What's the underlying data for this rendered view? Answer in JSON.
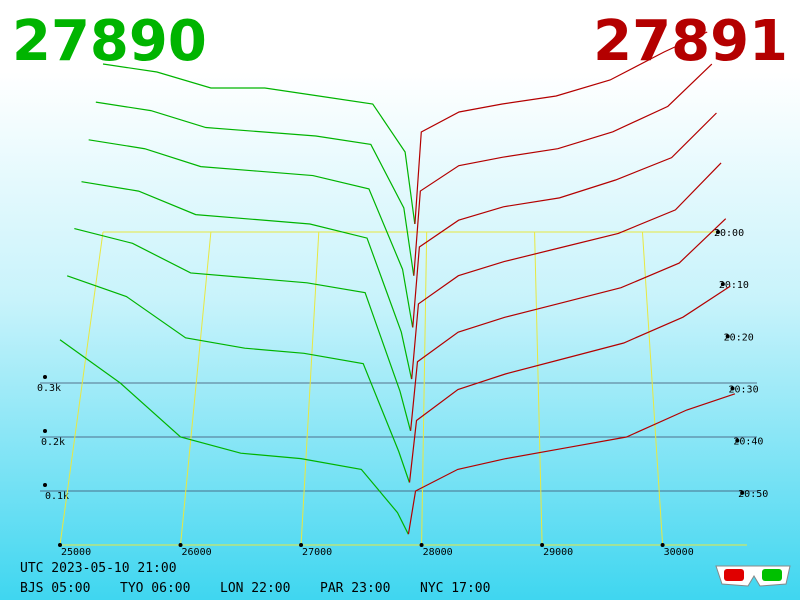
{
  "header": {
    "bid": 27890,
    "ask": 27891
  },
  "chart_data": {
    "type": "depth3d",
    "xlim": [
      25000,
      30700
    ],
    "xticks": [
      25000,
      26000,
      27000,
      28000,
      29000,
      30000
    ],
    "ylim": [
      0,
      0.5
    ],
    "yticks": [
      {
        "value": 0.1,
        "label": "0.1k"
      },
      {
        "value": 0.2,
        "label": "0.2k"
      },
      {
        "value": 0.3,
        "label": "0.3k"
      }
    ],
    "time_ticks": [
      "20:00",
      "20:10",
      "20:20",
      "20:30",
      "20:40",
      "20:50"
    ],
    "bids": {
      "color": "#00b400",
      "x": [
        25000,
        25500,
        26000,
        26500,
        27000,
        27500,
        27800,
        27890
      ],
      "series": [
        {
          "values": [
            0.42,
            0.4,
            0.36,
            0.36,
            0.34,
            0.32,
            0.2,
            0.02
          ]
        },
        {
          "values": [
            0.43,
            0.41,
            0.37,
            0.36,
            0.35,
            0.33,
            0.18,
            0.02
          ]
        },
        {
          "values": [
            0.44,
            0.42,
            0.38,
            0.37,
            0.36,
            0.33,
            0.15,
            0.02
          ]
        },
        {
          "values": [
            0.44,
            0.42,
            0.37,
            0.36,
            0.35,
            0.32,
            0.12,
            0.02
          ]
        },
        {
          "values": [
            0.43,
            0.4,
            0.34,
            0.33,
            0.32,
            0.3,
            0.1,
            0.02
          ]
        },
        {
          "values": [
            0.42,
            0.38,
            0.3,
            0.28,
            0.27,
            0.25,
            0.08,
            0.02
          ]
        },
        {
          "values": [
            0.38,
            0.3,
            0.2,
            0.17,
            0.16,
            0.14,
            0.06,
            0.02
          ]
        }
      ]
    },
    "asks": {
      "color": "#b40000",
      "x": [
        27891,
        27950,
        28300,
        28700,
        29200,
        29700,
        30200,
        30600
      ],
      "series": [
        {
          "values": [
            0.02,
            0.25,
            0.3,
            0.32,
            0.34,
            0.38,
            0.45,
            0.5
          ]
        },
        {
          "values": [
            0.02,
            0.22,
            0.28,
            0.3,
            0.32,
            0.36,
            0.42,
            0.52
          ]
        },
        {
          "values": [
            0.02,
            0.2,
            0.26,
            0.29,
            0.31,
            0.35,
            0.4,
            0.5
          ]
        },
        {
          "values": [
            0.02,
            0.18,
            0.24,
            0.27,
            0.3,
            0.33,
            0.38,
            0.48
          ]
        },
        {
          "values": [
            0.02,
            0.16,
            0.22,
            0.25,
            0.28,
            0.31,
            0.36,
            0.45
          ]
        },
        {
          "values": [
            0.02,
            0.14,
            0.2,
            0.23,
            0.26,
            0.29,
            0.34,
            0.4
          ]
        },
        {
          "values": [
            0.02,
            0.1,
            0.14,
            0.16,
            0.18,
            0.2,
            0.25,
            0.28
          ]
        }
      ]
    }
  },
  "footer": {
    "utc": "UTC 2023-05-10 21:00",
    "cities": [
      "BJS 05:00",
      "TYO 06:00",
      "LON 22:00",
      "PAR 23:00",
      "NYC 17:00"
    ]
  }
}
